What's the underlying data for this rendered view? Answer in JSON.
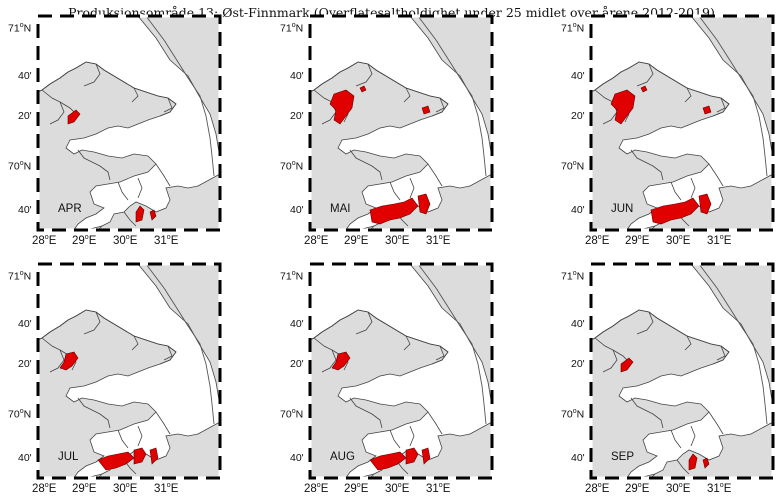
{
  "title": "Produksjonsområde 13: Øst-Finnmark (Overflatesaltholdighet under 25 midlet over årene 2012-2019)",
  "colors": {
    "land": "#dcdcdc",
    "coast": "#444444",
    "low_salinity": "#e00000",
    "frame": "#000000"
  },
  "axis": {
    "lat_labels": [
      {
        "deg": "71",
        "sup": "o",
        "suf": "N"
      },
      {
        "deg": "40'",
        "sup": "",
        "suf": ""
      },
      {
        "deg": "20'",
        "sup": "",
        "suf": ""
      },
      {
        "deg": "70",
        "sup": "o",
        "suf": "N"
      },
      {
        "deg": "40'",
        "sup": "",
        "suf": ""
      }
    ],
    "lon_labels": [
      {
        "deg": "28",
        "sup": "o",
        "suf": "E"
      },
      {
        "deg": "29",
        "sup": "o",
        "suf": "E"
      },
      {
        "deg": "30",
        "sup": "o",
        "suf": "E"
      },
      {
        "deg": "31",
        "sup": "o",
        "suf": "E"
      }
    ]
  },
  "panels": [
    {
      "month": "APR",
      "extent": "small"
    },
    {
      "month": "MAI",
      "extent": "large"
    },
    {
      "month": "JUN",
      "extent": "large"
    },
    {
      "month": "JUL",
      "extent": "medium"
    },
    {
      "month": "AUG",
      "extent": "medium"
    },
    {
      "month": "SEP",
      "extent": "small"
    }
  ]
}
